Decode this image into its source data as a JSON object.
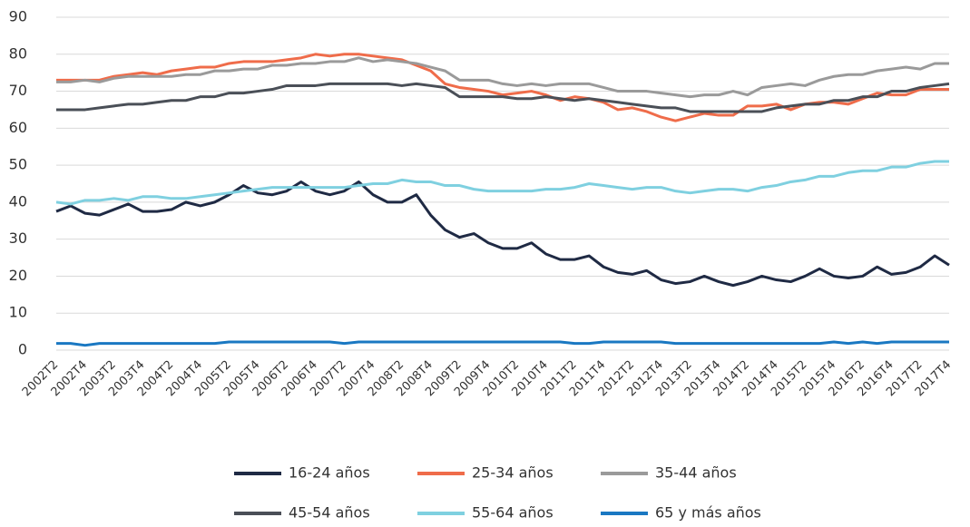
{
  "chart_data": {
    "type": "line",
    "categories": [
      "2002T2",
      null,
      "2002T4",
      null,
      "2003T2",
      null,
      "2003T4",
      null,
      "2004T2",
      null,
      "2004T4",
      null,
      "2005T2",
      null,
      "2005T4",
      null,
      "2006T2",
      null,
      "2006T4",
      null,
      "2007T2",
      null,
      "2007T4",
      null,
      "2008T2",
      null,
      "2008T4",
      null,
      "2009T2",
      null,
      "2009T4",
      null,
      "2010T2",
      null,
      "2010T4",
      null,
      "2011T2",
      null,
      "2011T4",
      null,
      "2012T2",
      null,
      "2012T4",
      null,
      "2013T2",
      null,
      "2013T4",
      null,
      "2014T2",
      null,
      "2014T4",
      null,
      "2015T2",
      null,
      "2015T4",
      null,
      "2016T2",
      null,
      "2016T4",
      null,
      "2017T2",
      null,
      "2017T4"
    ],
    "series": [
      {
        "name": "16-24 años",
        "color": "#1f2a44",
        "values": [
          37.5,
          39,
          37,
          36.5,
          38,
          39.5,
          37.5,
          37.5,
          38,
          40,
          39,
          40,
          42,
          44.5,
          42.5,
          42,
          43,
          45.5,
          43,
          42,
          43,
          45.5,
          42,
          40,
          40,
          42,
          36.5,
          32.5,
          30.5,
          31.5,
          29,
          27.5,
          27.5,
          29,
          26,
          24.5,
          24.5,
          25.5,
          22.5,
          21,
          20.5,
          21.5,
          19,
          18,
          18.5,
          20,
          18.5,
          17.5,
          18.5,
          20,
          19,
          18.5,
          20,
          22,
          20,
          19.5,
          20,
          22.5,
          20.5,
          21,
          22.5,
          25.5,
          23
        ]
      },
      {
        "name": "25-34 años",
        "color": "#ef6c4a",
        "values": [
          73,
          73,
          73,
          73,
          74,
          74.5,
          75,
          74.5,
          75.5,
          76,
          76.5,
          76.5,
          77.5,
          78,
          78,
          78,
          78.5,
          79,
          80,
          79.5,
          80,
          80,
          79.5,
          79,
          78.5,
          77,
          75.5,
          72,
          71,
          70.5,
          70,
          69,
          69.5,
          70,
          69,
          67.5,
          68.5,
          68,
          67,
          65,
          65.5,
          64.5,
          63,
          62,
          63,
          64,
          63.5,
          63.5,
          66,
          66,
          66.5,
          65,
          66.5,
          67,
          67,
          66.5,
          68,
          69.5,
          69,
          69,
          70.5,
          70.5,
          70.5
        ]
      },
      {
        "name": "35-44 años",
        "color": "#9a9a9a",
        "values": [
          72.5,
          72.5,
          73,
          72.5,
          73.5,
          74,
          74,
          74,
          74,
          74.5,
          74.5,
          75.5,
          75.5,
          76,
          76,
          77,
          77,
          77.5,
          77.5,
          78,
          78,
          79,
          78,
          78.5,
          78,
          77.5,
          76.5,
          75.5,
          73,
          73,
          73,
          72,
          71.5,
          72,
          71.5,
          72,
          72,
          72,
          71,
          70,
          70,
          70,
          69.5,
          69,
          68.5,
          69,
          69,
          70,
          69,
          71,
          71.5,
          72,
          71.5,
          73,
          74,
          74.5,
          74.5,
          75.5,
          76,
          76.5,
          76,
          77.5,
          77.5
        ]
      },
      {
        "name": "45-54 años",
        "color": "#4a4f57",
        "values": [
          65,
          65,
          65,
          65.5,
          66,
          66.5,
          66.5,
          67,
          67.5,
          67.5,
          68.5,
          68.5,
          69.5,
          69.5,
          70,
          70.5,
          71.5,
          71.5,
          71.5,
          72,
          72,
          72,
          72,
          72,
          71.5,
          72,
          71.5,
          71,
          68.5,
          68.5,
          68.5,
          68.5,
          68,
          68,
          68.5,
          68,
          67.5,
          68,
          67.5,
          67,
          66.5,
          66,
          65.5,
          65.5,
          64.5,
          64.5,
          64.5,
          64.5,
          64.5,
          64.5,
          65.5,
          66,
          66.5,
          66.5,
          67.5,
          67.5,
          68.5,
          68.5,
          70,
          70,
          71,
          71.5,
          72
        ]
      },
      {
        "name": "55-64 años",
        "color": "#7fd0e0",
        "values": [
          40,
          39.5,
          40.5,
          40.5,
          41,
          40.5,
          41.5,
          41.5,
          41,
          41,
          41.5,
          42,
          42.5,
          43,
          43.5,
          44,
          44,
          44,
          44,
          44,
          44,
          44.5,
          45,
          45,
          46,
          45.5,
          45.5,
          44.5,
          44.5,
          43.5,
          43,
          43,
          43,
          43,
          43.5,
          43.5,
          44,
          45,
          44.5,
          44,
          43.5,
          44,
          44,
          43,
          42.5,
          43,
          43.5,
          43.5,
          43,
          44,
          44.5,
          45.5,
          46,
          47,
          47,
          48,
          48.5,
          48.5,
          49.5,
          49.5,
          50.5,
          51,
          51
        ]
      },
      {
        "name": "65 y más años",
        "color": "#1a78c2",
        "values": [
          1.8,
          1.8,
          1.3,
          1.8,
          1.8,
          1.8,
          1.8,
          1.8,
          1.8,
          1.8,
          1.8,
          1.8,
          2.2,
          2.2,
          2.2,
          2.2,
          2.2,
          2.2,
          2.2,
          2.2,
          1.8,
          2.2,
          2.2,
          2.2,
          2.2,
          2.2,
          2.2,
          2.2,
          2.2,
          2.2,
          2.2,
          2.2,
          2.2,
          2.2,
          2.2,
          2.2,
          1.8,
          1.8,
          2.2,
          2.2,
          2.2,
          2.2,
          2.2,
          1.8,
          1.8,
          1.8,
          1.8,
          1.8,
          1.8,
          1.8,
          1.8,
          1.8,
          1.8,
          1.8,
          2.2,
          1.8,
          2.2,
          1.8,
          2.2,
          2.2,
          2.2,
          2.2,
          2.2
        ]
      }
    ],
    "ylim": [
      0,
      90
    ],
    "yticks": [
      0,
      10,
      20,
      30,
      40,
      50,
      60,
      70,
      80,
      90
    ],
    "grid": true,
    "legend": "bottom"
  }
}
